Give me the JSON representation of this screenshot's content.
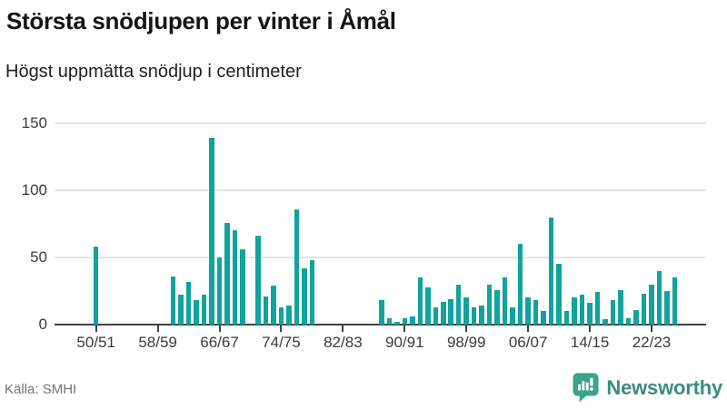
{
  "header": {
    "title": "Största snödjupen per vinter i Åmål",
    "subtitle": "Högst uppmätta snödjup i centimeter"
  },
  "footer": {
    "source": "Källa: SMHI",
    "brand": "Newsworthy",
    "brand_icon": "newsworthy-bar-chart-bubble-icon"
  },
  "colors": {
    "bar": "#11a39d",
    "grid": "#e4e4e4",
    "axis": "#3f3f3f",
    "tick_label": "#3c3c3c",
    "title": "#141414",
    "source_text": "#737373",
    "brand_teal": "#3c8a84",
    "brand_icon_green": "#3aa489"
  },
  "chart_data": {
    "type": "bar",
    "title": "Största snödjupen per vinter i Åmål",
    "subtitle": "Högst uppmätta snödjup i centimeter",
    "xlabel": "",
    "ylabel": "",
    "unit": "cm",
    "ylim": [
      0,
      150
    ],
    "yticks": [
      0,
      50,
      100,
      150
    ],
    "grid": "horizontal",
    "legend": "none",
    "first_year": 1950,
    "xticks": [
      {
        "year": 1950,
        "label": "50/51"
      },
      {
        "year": 1958,
        "label": "58/59"
      },
      {
        "year": 1966,
        "label": "66/67"
      },
      {
        "year": 1974,
        "label": "74/75"
      },
      {
        "year": 1982,
        "label": "82/83"
      },
      {
        "year": 1990,
        "label": "90/91"
      },
      {
        "year": 1998,
        "label": "98/99"
      },
      {
        "year": 2006,
        "label": "06/07"
      },
      {
        "year": 2014,
        "label": "14/15"
      },
      {
        "year": 2022,
        "label": "22/23"
      }
    ],
    "points": [
      {
        "winter": "50/51",
        "year": 1950,
        "value": 58
      },
      {
        "winter": "60/61",
        "year": 1960,
        "value": 36
      },
      {
        "winter": "61/62",
        "year": 1961,
        "value": 22
      },
      {
        "winter": "62/63",
        "year": 1962,
        "value": 32
      },
      {
        "winter": "63/64",
        "year": 1963,
        "value": 18
      },
      {
        "winter": "64/65",
        "year": 1964,
        "value": 22
      },
      {
        "winter": "65/66",
        "year": 1965,
        "value": 139
      },
      {
        "winter": "66/67",
        "year": 1966,
        "value": 50
      },
      {
        "winter": "67/68",
        "year": 1967,
        "value": 76
      },
      {
        "winter": "68/69",
        "year": 1968,
        "value": 70
      },
      {
        "winter": "69/70",
        "year": 1969,
        "value": 56
      },
      {
        "winter": "71/72",
        "year": 1971,
        "value": 66
      },
      {
        "winter": "72/73",
        "year": 1972,
        "value": 21
      },
      {
        "winter": "73/74",
        "year": 1973,
        "value": 29
      },
      {
        "winter": "74/75",
        "year": 1974,
        "value": 13
      },
      {
        "winter": "75/76",
        "year": 1975,
        "value": 14
      },
      {
        "winter": "76/77",
        "year": 1976,
        "value": 86
      },
      {
        "winter": "77/78",
        "year": 1977,
        "value": 42
      },
      {
        "winter": "78/79",
        "year": 1978,
        "value": 48
      },
      {
        "winter": "87/88",
        "year": 1987,
        "value": 18
      },
      {
        "winter": "88/89",
        "year": 1988,
        "value": 5
      },
      {
        "winter": "89/90",
        "year": 1989,
        "value": 2
      },
      {
        "winter": "90/91",
        "year": 1990,
        "value": 5
      },
      {
        "winter": "91/92",
        "year": 1991,
        "value": 6
      },
      {
        "winter": "92/93",
        "year": 1992,
        "value": 35
      },
      {
        "winter": "93/94",
        "year": 1993,
        "value": 28
      },
      {
        "winter": "94/95",
        "year": 1994,
        "value": 13
      },
      {
        "winter": "95/96",
        "year": 1995,
        "value": 17
      },
      {
        "winter": "96/97",
        "year": 1996,
        "value": 19
      },
      {
        "winter": "97/98",
        "year": 1997,
        "value": 30
      },
      {
        "winter": "98/99",
        "year": 1998,
        "value": 20
      },
      {
        "winter": "99/00",
        "year": 1999,
        "value": 13
      },
      {
        "winter": "00/01",
        "year": 2000,
        "value": 14
      },
      {
        "winter": "01/02",
        "year": 2001,
        "value": 30
      },
      {
        "winter": "02/03",
        "year": 2002,
        "value": 26
      },
      {
        "winter": "03/04",
        "year": 2003,
        "value": 35
      },
      {
        "winter": "04/05",
        "year": 2004,
        "value": 13
      },
      {
        "winter": "05/06",
        "year": 2005,
        "value": 60
      },
      {
        "winter": "06/07",
        "year": 2006,
        "value": 20
      },
      {
        "winter": "07/08",
        "year": 2007,
        "value": 18
      },
      {
        "winter": "08/09",
        "year": 2008,
        "value": 10
      },
      {
        "winter": "09/10",
        "year": 2009,
        "value": 80
      },
      {
        "winter": "10/11",
        "year": 2010,
        "value": 45
      },
      {
        "winter": "11/12",
        "year": 2011,
        "value": 10
      },
      {
        "winter": "12/13",
        "year": 2012,
        "value": 20
      },
      {
        "winter": "13/14",
        "year": 2013,
        "value": 22
      },
      {
        "winter": "14/15",
        "year": 2014,
        "value": 16
      },
      {
        "winter": "15/16",
        "year": 2015,
        "value": 24
      },
      {
        "winter": "16/17",
        "year": 2016,
        "value": 4
      },
      {
        "winter": "17/18",
        "year": 2017,
        "value": 18
      },
      {
        "winter": "18/19",
        "year": 2018,
        "value": 26
      },
      {
        "winter": "19/20",
        "year": 2019,
        "value": 5
      },
      {
        "winter": "20/21",
        "year": 2020,
        "value": 11
      },
      {
        "winter": "21/22",
        "year": 2021,
        "value": 23
      },
      {
        "winter": "22/23",
        "year": 2022,
        "value": 30
      },
      {
        "winter": "23/24",
        "year": 2023,
        "value": 40
      },
      {
        "winter": "24/25",
        "year": 2024,
        "value": 25
      },
      {
        "winter": "25/26",
        "year": 2025,
        "value": 35
      }
    ]
  }
}
